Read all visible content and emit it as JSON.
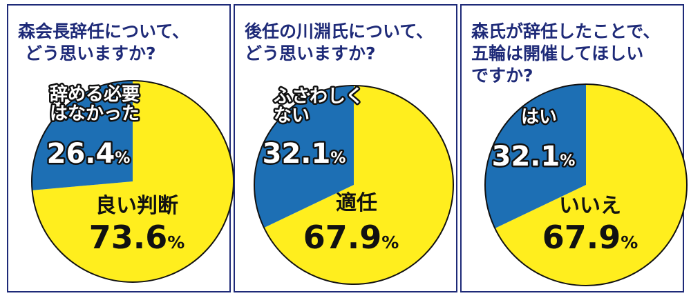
{
  "colors": {
    "yes_slice": "#ffee1e",
    "no_slice": "#1d6fb4",
    "border": "#1e2a78",
    "text": "#1e2a78"
  },
  "chart_data": [
    {
      "type": "pie",
      "title_lines": [
        "森会長辞任について、",
        "どう思いますか?"
      ],
      "slices": [
        {
          "label_lines": [
            "良い判断"
          ],
          "value": 73.6,
          "value_text": "73.6",
          "color": "#ffee1e"
        },
        {
          "label_lines": [
            "辞める必要",
            "はなかった"
          ],
          "value": 26.4,
          "value_text": "26.4",
          "color": "#1d6fb4"
        }
      ]
    },
    {
      "type": "pie",
      "title_lines": [
        "後任の川淵氏について、",
        "どう思いますか?"
      ],
      "slices": [
        {
          "label_lines": [
            "適任"
          ],
          "value": 67.9,
          "value_text": "67.9",
          "color": "#ffee1e"
        },
        {
          "label_lines": [
            "ふさわしく",
            "ない"
          ],
          "value": 32.1,
          "value_text": "32.1",
          "color": "#1d6fb4"
        }
      ]
    },
    {
      "type": "pie",
      "title_lines": [
        "森氏が辞任したことで、",
        "五輪は開催してほしい",
        "ですか?"
      ],
      "slices": [
        {
          "label_lines": [
            "いいえ"
          ],
          "value": 67.9,
          "value_text": "67.9",
          "color": "#ffee1e"
        },
        {
          "label_lines": [
            "はい"
          ],
          "value": 32.1,
          "value_text": "32.1",
          "color": "#1d6fb4"
        }
      ]
    }
  ],
  "percent_sign": "%"
}
